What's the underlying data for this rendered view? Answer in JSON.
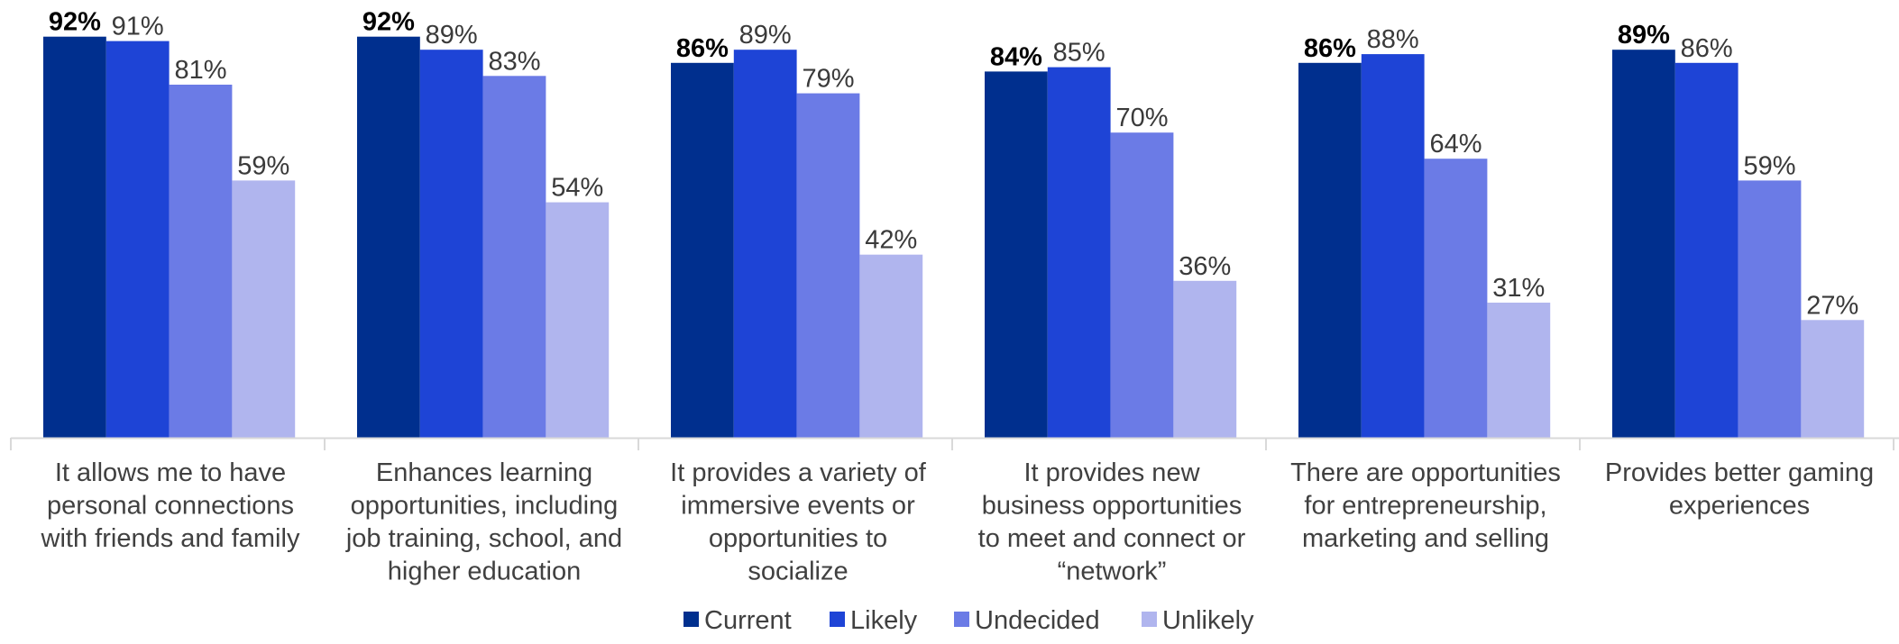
{
  "chart_data": {
    "type": "bar",
    "categories": [
      [
        "It allows me to have",
        "personal connections",
        "with friends and family"
      ],
      [
        "Enhances learning",
        "opportunities, including",
        "job training, school, and",
        "higher education"
      ],
      [
        "It provides a variety of",
        "immersive events or",
        "opportunities to",
        "socialize"
      ],
      [
        "It provides new",
        "business opportunities",
        "to meet and connect or",
        "“network”"
      ],
      [
        "There are opportunities",
        "for entrepreneurship,",
        "marketing and selling"
      ],
      [
        "Provides better gaming",
        "experiences"
      ]
    ],
    "series": [
      {
        "name": "Current",
        "color": "#002F8E",
        "values": [
          92,
          92,
          86,
          84,
          86,
          89
        ],
        "labels": [
          "92%",
          "92%",
          "86%",
          "84%",
          "86%",
          "89%"
        ],
        "label_weight": "bold"
      },
      {
        "name": "Likely",
        "color": "#1E44D6",
        "values": [
          91,
          89,
          89,
          85,
          88,
          86
        ],
        "labels": [
          "91%",
          "89%",
          "89%",
          "85%",
          "88%",
          "86%"
        ],
        "label_weight": "normal"
      },
      {
        "name": "Undecided",
        "color": "#6B7BE6",
        "values": [
          81,
          83,
          79,
          70,
          64,
          59
        ],
        "labels": [
          "81%",
          "83%",
          "79%",
          "70%",
          "64%",
          "59%"
        ],
        "label_weight": "normal"
      },
      {
        "name": "Unlikely",
        "color": "#B0B5EE",
        "values": [
          59,
          54,
          42,
          36,
          31,
          27
        ],
        "labels": [
          "59%",
          "54%",
          "42%",
          "36%",
          "31%",
          "27%"
        ],
        "label_weight": "normal"
      }
    ],
    "ylim": [
      0,
      100
    ],
    "grid": false,
    "legend": "bottom-center",
    "xlabel": "",
    "ylabel": "",
    "title": ""
  }
}
